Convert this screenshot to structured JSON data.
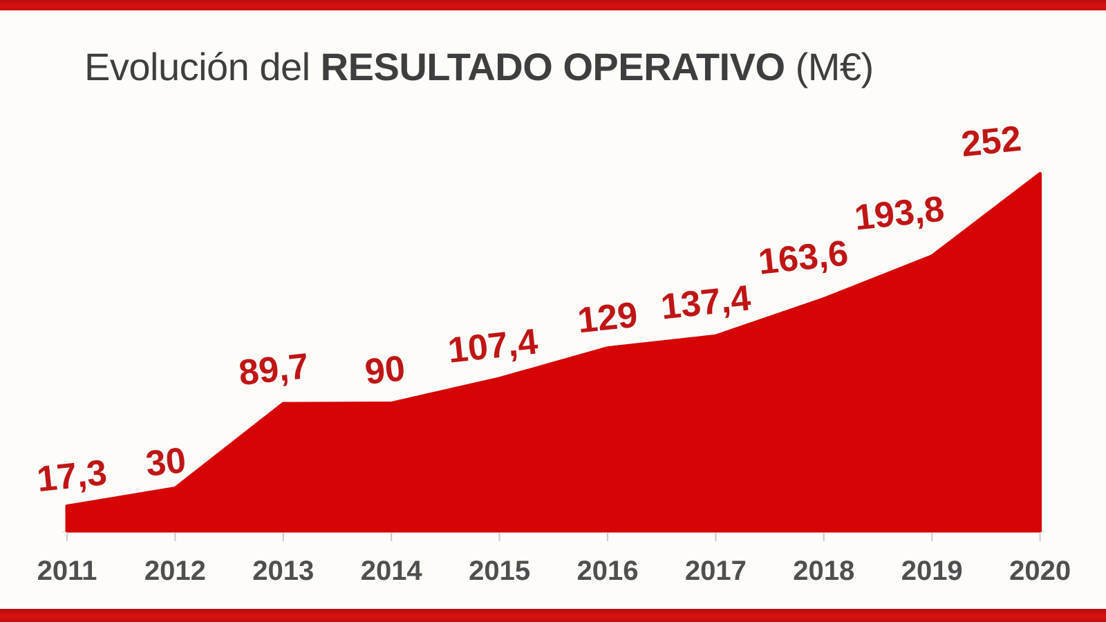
{
  "title": {
    "prefix": "Evolución del ",
    "emphasis": "RESULTADO OPERATIVO",
    "suffix": " (M€)"
  },
  "chart_data": {
    "type": "area",
    "title": "Evolución del RESULTADO OPERATIVO (M€)",
    "x": [
      "2011",
      "2012",
      "2013",
      "2014",
      "2015",
      "2016",
      "2017",
      "2018",
      "2019",
      "2020"
    ],
    "series": [
      {
        "name": "Resultado operativo (M€)",
        "values": [
          17.3,
          30,
          89.7,
          90,
          107.4,
          129,
          137.4,
          163.6,
          193.8,
          252
        ]
      }
    ],
    "display_values": [
      "17,3",
      "30",
      "89,7",
      "90",
      "107,4",
      "129",
      "137,4",
      "163,6",
      "193,8",
      "252"
    ],
    "xlabel": "",
    "ylabel": "M€",
    "ylim": [
      0,
      260
    ],
    "grid": false,
    "legend": "none"
  },
  "colors": {
    "accent_red": "#ce1010",
    "area_red": "#d60404",
    "data_label_red": "#c01515",
    "title_gray": "#3e3e3e",
    "axis_label_gray": "#4f4f4f",
    "tick_gray": "#c8c8c8",
    "background": "#fdfcf9"
  }
}
